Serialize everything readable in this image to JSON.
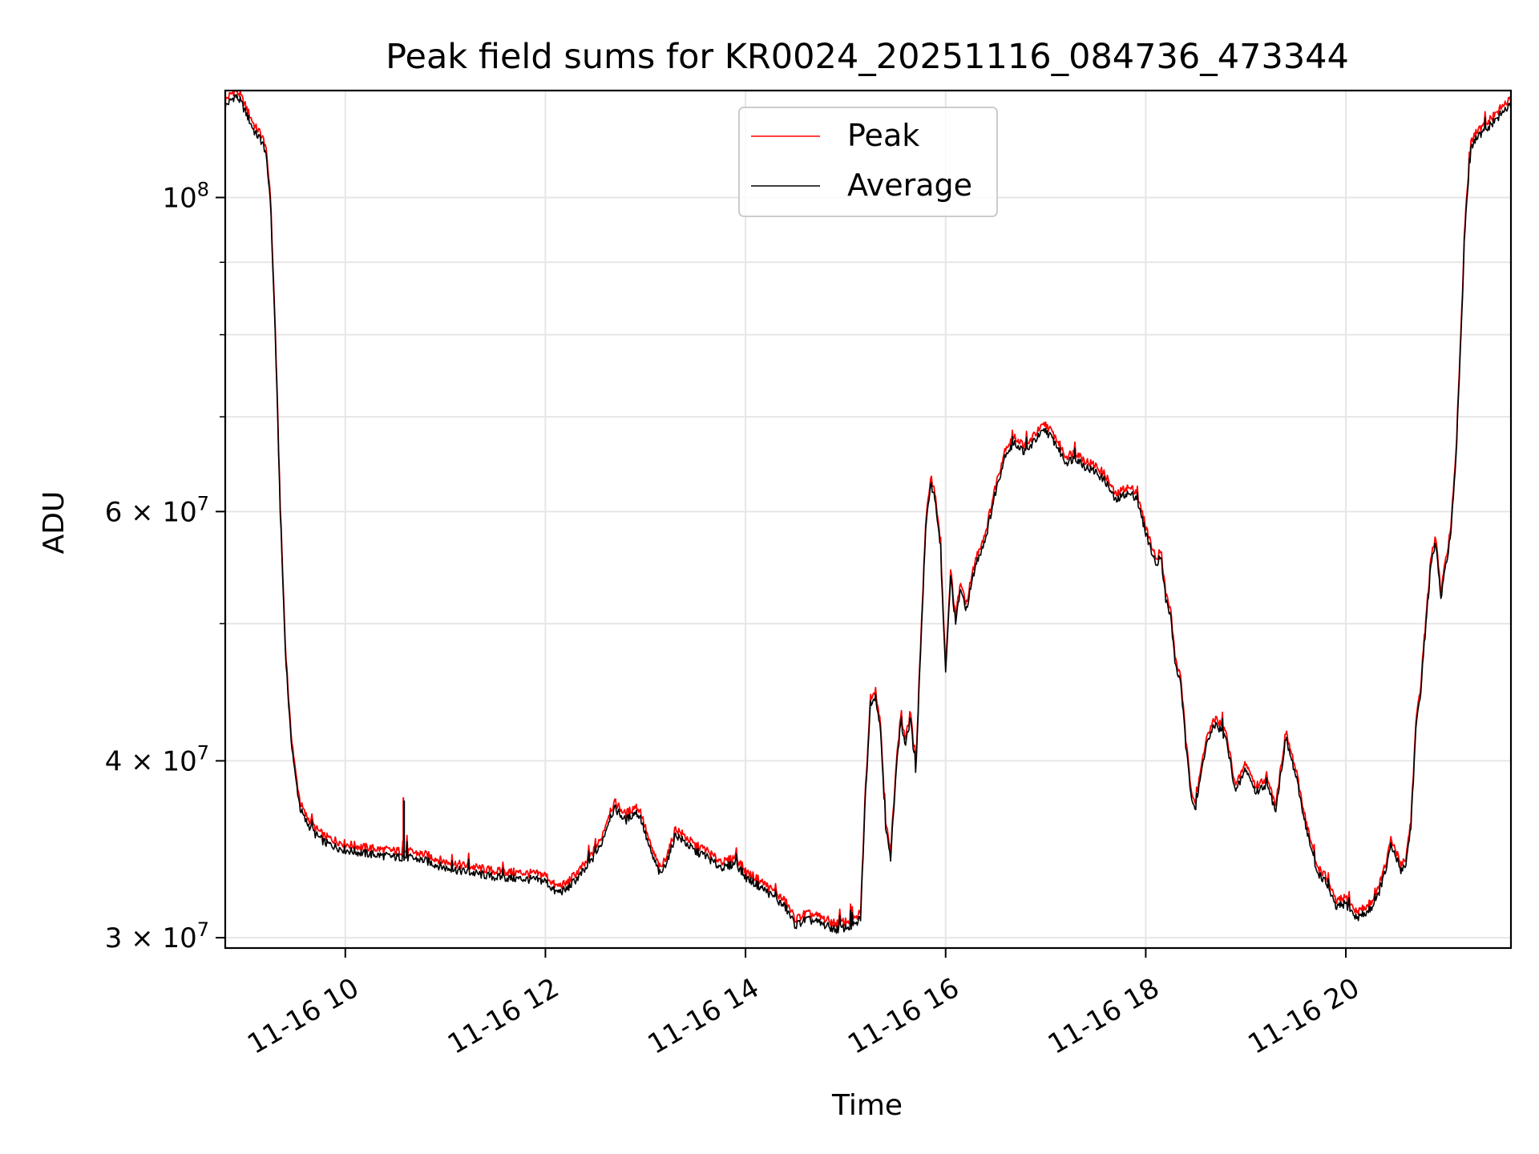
{
  "chart_data": {
    "type": "line",
    "title": "Peak field sums for KR0024_20251116_084736_473344",
    "xlabel": "Time",
    "ylabel": "ADU",
    "yscale": "log",
    "grid": true,
    "legend_position": "top-center",
    "xlim": [
      8.8,
      21.65
    ],
    "ylim": [
      29500000,
      119000000
    ],
    "x_ticks": [
      {
        "value": 10,
        "label": "11-16 10"
      },
      {
        "value": 12,
        "label": "11-16 12"
      },
      {
        "value": 14,
        "label": "11-16 14"
      },
      {
        "value": 16,
        "label": "11-16 16"
      },
      {
        "value": 18,
        "label": "11-16 18"
      },
      {
        "value": 20,
        "label": "11-16 20"
      }
    ],
    "y_ticks_major": [
      {
        "value": 30000000,
        "label_base": "3 × 10",
        "label_exp": "7"
      },
      {
        "value": 40000000,
        "label_base": "4 × 10",
        "label_exp": "7"
      },
      {
        "value": 60000000,
        "label_base": "6 × 10",
        "label_exp": "7"
      },
      {
        "value": 100000000,
        "label_base": "10",
        "label_exp": "8"
      }
    ],
    "y_minor_grid": [
      50000000,
      70000000,
      80000000,
      90000000
    ],
    "series": [
      {
        "name": "Peak",
        "color": "#ff0000",
        "offset": 1.01
      },
      {
        "name": "Average",
        "color": "#000000",
        "offset": 1.0
      }
    ],
    "points": [
      [
        8.8,
        116000000
      ],
      [
        8.9,
        118000000
      ],
      [
        8.95,
        117000000
      ],
      [
        9.0,
        115000000
      ],
      [
        9.1,
        111000000
      ],
      [
        9.15,
        110000000
      ],
      [
        9.2,
        108000000
      ],
      [
        9.25,
        100000000
      ],
      [
        9.3,
        80000000
      ],
      [
        9.35,
        60000000
      ],
      [
        9.4,
        48000000
      ],
      [
        9.45,
        42000000
      ],
      [
        9.5,
        39000000
      ],
      [
        9.55,
        37000000
      ],
      [
        9.6,
        36300000
      ],
      [
        9.7,
        35500000
      ],
      [
        9.8,
        35000000
      ],
      [
        9.9,
        34800000
      ],
      [
        10.0,
        34600000
      ],
      [
        10.2,
        34400000
      ],
      [
        10.5,
        34200000
      ],
      [
        10.6,
        34200000
      ],
      [
        10.8,
        34000000
      ],
      [
        11.0,
        33600000
      ],
      [
        11.2,
        33400000
      ],
      [
        11.5,
        33100000
      ],
      [
        11.8,
        33000000
      ],
      [
        12.0,
        32900000
      ],
      [
        12.1,
        32300000
      ],
      [
        12.2,
        32400000
      ],
      [
        12.4,
        33500000
      ],
      [
        12.55,
        34800000
      ],
      [
        12.65,
        36600000
      ],
      [
        12.7,
        37000000
      ],
      [
        12.8,
        36300000
      ],
      [
        12.9,
        36800000
      ],
      [
        12.95,
        36500000
      ],
      [
        13.05,
        34500000
      ],
      [
        13.15,
        33200000
      ],
      [
        13.25,
        34500000
      ],
      [
        13.3,
        35500000
      ],
      [
        13.4,
        35000000
      ],
      [
        13.5,
        34500000
      ],
      [
        13.6,
        34300000
      ],
      [
        13.7,
        33800000
      ],
      [
        13.8,
        33600000
      ],
      [
        13.9,
        33900000
      ],
      [
        14.0,
        33100000
      ],
      [
        14.2,
        32400000
      ],
      [
        14.4,
        31500000
      ],
      [
        14.5,
        30600000
      ],
      [
        14.6,
        30900000
      ],
      [
        14.7,
        30800000
      ],
      [
        14.9,
        30400000
      ],
      [
        15.0,
        30500000
      ],
      [
        15.1,
        30600000
      ],
      [
        15.15,
        31000000
      ],
      [
        15.2,
        38000000
      ],
      [
        15.25,
        44000000
      ],
      [
        15.3,
        44500000
      ],
      [
        15.35,
        42000000
      ],
      [
        15.4,
        36000000
      ],
      [
        15.45,
        34000000
      ],
      [
        15.5,
        39000000
      ],
      [
        15.55,
        42500000
      ],
      [
        15.6,
        41000000
      ],
      [
        15.65,
        43000000
      ],
      [
        15.7,
        39000000
      ],
      [
        15.75,
        48000000
      ],
      [
        15.8,
        58000000
      ],
      [
        15.85,
        63000000
      ],
      [
        15.9,
        61000000
      ],
      [
        15.95,
        56000000
      ],
      [
        16.0,
        46000000
      ],
      [
        16.05,
        54000000
      ],
      [
        16.1,
        50000000
      ],
      [
        16.15,
        53000000
      ],
      [
        16.2,
        51000000
      ],
      [
        16.3,
        55000000
      ],
      [
        16.4,
        57500000
      ],
      [
        16.5,
        62000000
      ],
      [
        16.6,
        66000000
      ],
      [
        16.7,
        67000000
      ],
      [
        16.8,
        66000000
      ],
      [
        16.9,
        67500000
      ],
      [
        17.0,
        68500000
      ],
      [
        17.1,
        67000000
      ],
      [
        17.2,
        65000000
      ],
      [
        17.3,
        65500000
      ],
      [
        17.4,
        64500000
      ],
      [
        17.5,
        64000000
      ],
      [
        17.6,
        63000000
      ],
      [
        17.7,
        61000000
      ],
      [
        17.8,
        61800000
      ],
      [
        17.9,
        61500000
      ],
      [
        18.0,
        58000000
      ],
      [
        18.1,
        55000000
      ],
      [
        18.15,
        56000000
      ],
      [
        18.2,
        52000000
      ],
      [
        18.25,
        50500000
      ],
      [
        18.3,
        46500000
      ],
      [
        18.35,
        45500000
      ],
      [
        18.4,
        41000000
      ],
      [
        18.45,
        38000000
      ],
      [
        18.5,
        37000000
      ],
      [
        18.55,
        39000000
      ],
      [
        18.6,
        41000000
      ],
      [
        18.7,
        42500000
      ],
      [
        18.8,
        41500000
      ],
      [
        18.9,
        38000000
      ],
      [
        19.0,
        39500000
      ],
      [
        19.1,
        38000000
      ],
      [
        19.2,
        38500000
      ],
      [
        19.3,
        37000000
      ],
      [
        19.4,
        41500000
      ],
      [
        19.5,
        39000000
      ],
      [
        19.6,
        36000000
      ],
      [
        19.7,
        33500000
      ],
      [
        19.8,
        32800000
      ],
      [
        19.9,
        31500000
      ],
      [
        20.0,
        31700000
      ],
      [
        20.1,
        31000000
      ],
      [
        20.2,
        31200000
      ],
      [
        20.3,
        31800000
      ],
      [
        20.4,
        33500000
      ],
      [
        20.45,
        34800000
      ],
      [
        20.5,
        34200000
      ],
      [
        20.55,
        33500000
      ],
      [
        20.6,
        33800000
      ],
      [
        20.65,
        36000000
      ],
      [
        20.7,
        42000000
      ],
      [
        20.75,
        45000000
      ],
      [
        20.8,
        50000000
      ],
      [
        20.85,
        55000000
      ],
      [
        20.9,
        57000000
      ],
      [
        20.95,
        52000000
      ],
      [
        21.0,
        55000000
      ],
      [
        21.05,
        58000000
      ],
      [
        21.1,
        65000000
      ],
      [
        21.15,
        80000000
      ],
      [
        21.2,
        98000000
      ],
      [
        21.25,
        108000000
      ],
      [
        21.3,
        110000000
      ],
      [
        21.4,
        111500000
      ],
      [
        21.5,
        113500000
      ],
      [
        21.6,
        115500000
      ],
      [
        21.65,
        116000000
      ]
    ]
  }
}
